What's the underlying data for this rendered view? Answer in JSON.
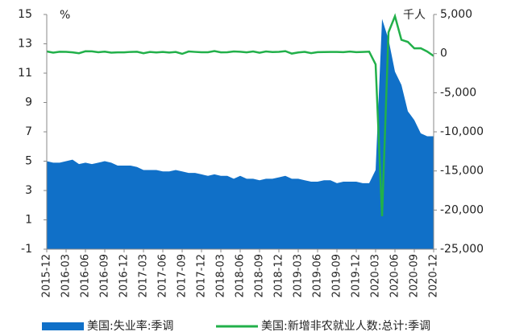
{
  "chart_data": {
    "type": "area-line",
    "y_label": "%",
    "y2_label": "千人",
    "categories": [
      "2015-12",
      null,
      null,
      "2016-03",
      null,
      null,
      "2016-06",
      null,
      null,
      "2016-09",
      null,
      null,
      "2016-12",
      null,
      null,
      "2017-03",
      null,
      null,
      "2017-06",
      null,
      null,
      "2017-09",
      null,
      null,
      "2017-12",
      null,
      null,
      "2018-03",
      null,
      null,
      "2018-06",
      null,
      null,
      "2018-09",
      null,
      null,
      "2018-12",
      null,
      null,
      "2019-03",
      null,
      null,
      "2019-06",
      null,
      null,
      "2019-09",
      null,
      null,
      "2019-12",
      null,
      null,
      "2020-03",
      null,
      null,
      "2020-06",
      null,
      null,
      "2020-09",
      null,
      null,
      "2020-12"
    ],
    "series": [
      {
        "name": "美国:失业率:季调",
        "color": "#1070c8",
        "axis": "y",
        "values": [
          5.0,
          4.9,
          4.9,
          5.0,
          5.1,
          4.8,
          4.9,
          4.8,
          4.9,
          5.0,
          4.9,
          4.7,
          4.7,
          4.7,
          4.6,
          4.4,
          4.4,
          4.4,
          4.3,
          4.3,
          4.4,
          4.3,
          4.2,
          4.2,
          4.1,
          4.0,
          4.1,
          4.0,
          4.0,
          3.8,
          4.0,
          3.8,
          3.8,
          3.7,
          3.8,
          3.8,
          3.9,
          4.0,
          3.8,
          3.8,
          3.7,
          3.6,
          3.6,
          3.7,
          3.7,
          3.5,
          3.6,
          3.6,
          3.6,
          3.5,
          3.5,
          4.4,
          14.7,
          13.3,
          11.1,
          10.2,
          8.4,
          7.8,
          6.9,
          6.7,
          6.7
        ]
      },
      {
        "name": "美国:新增非农就业人数:总计:季调",
        "color": "#22b04a",
        "axis": "y2",
        "values": [
          271,
          126,
          237,
          225,
          153,
          43,
          297,
          291,
          176,
          249,
          124,
          164,
          155,
          216,
          232,
          50,
          207,
          145,
          210,
          138,
          208,
          -33,
          271,
          216,
          175,
          176,
          324,
          155,
          175,
          270,
          235,
          165,
          270,
          108,
          277,
          196,
          227,
          312,
          1,
          147,
          216,
          62,
          178,
          194,
          207,
          208,
          185,
          261,
          184,
          214,
          251,
          -1373,
          -20787,
          2725,
          4781,
          1761,
          1493,
          672,
          680,
          264,
          -306
        ]
      }
    ],
    "ylim": [
      -1,
      15
    ],
    "yticks": [
      -1,
      1,
      3,
      5,
      7,
      9,
      11,
      13,
      15
    ],
    "y2lim": [
      -25000,
      5000
    ],
    "y2ticks": [
      {
        "value": -25000,
        "label": "-25,000"
      },
      {
        "value": -20000,
        "label": "-20,000"
      },
      {
        "value": -15000,
        "label": "-15,000"
      },
      {
        "value": -10000,
        "label": "-10,000"
      },
      {
        "value": -5000,
        "label": "-5,000"
      },
      0,
      {
        "value": 5000,
        "label": "5,000"
      }
    ]
  }
}
